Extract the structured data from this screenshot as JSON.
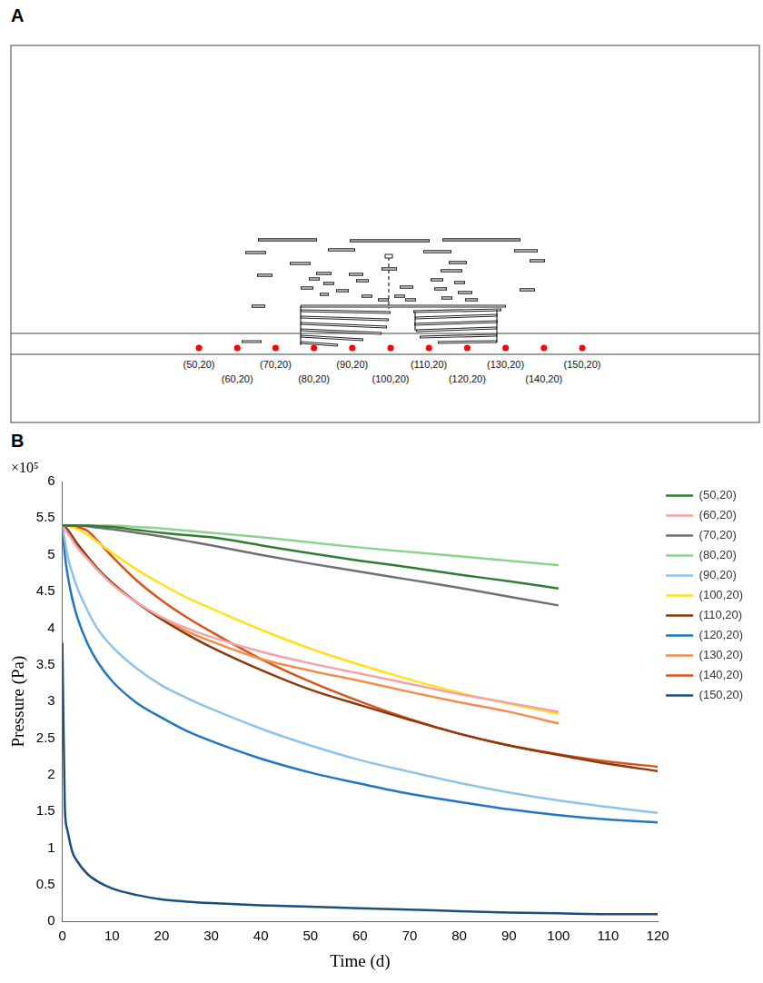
{
  "panel_a": {
    "letter": "A",
    "points": [
      {
        "label": "(50,20)",
        "x": 50,
        "y": 20
      },
      {
        "label": "(60,20)",
        "x": 60,
        "y": 20
      },
      {
        "label": "(70,20)",
        "x": 70,
        "y": 20
      },
      {
        "label": "(80,20)",
        "x": 80,
        "y": 20
      },
      {
        "label": "(90,20)",
        "x": 90,
        "y": 20
      },
      {
        "label": "(100,20)",
        "x": 100,
        "y": 20
      },
      {
        "label": "(110,20)",
        "x": 110,
        "y": 20
      },
      {
        "label": "(120,20)",
        "x": 120,
        "y": 20
      },
      {
        "label": "(130,20)",
        "x": 130,
        "y": 20
      },
      {
        "label": "(140,20)",
        "x": 140,
        "y": 20
      },
      {
        "label": "(150,20)",
        "x": 150,
        "y": 20
      }
    ]
  },
  "panel_b": {
    "letter": "B"
  },
  "chart_data": {
    "type": "line",
    "x_label": "Time (d)",
    "y_label": "Pressure (Pa)",
    "annotations": [
      "×10⁵"
    ],
    "x": [
      0,
      0.5,
      1,
      2,
      3,
      5,
      7,
      10,
      15,
      20,
      25,
      30,
      40,
      50,
      60,
      70,
      80,
      90,
      100,
      110,
      120
    ],
    "xlim": [
      0,
      120
    ],
    "xticks": [
      0,
      10,
      20,
      30,
      40,
      50,
      60,
      70,
      80,
      90,
      100,
      110,
      120
    ],
    "ylim": [
      0,
      6
    ],
    "yticks": [
      0,
      0.5,
      1,
      1.5,
      2,
      2.5,
      3,
      3.5,
      4,
      4.5,
      5,
      5.5,
      6
    ],
    "grid": false,
    "legend": "right",
    "marker": "none",
    "series": [
      {
        "name": "(50,20)",
        "color": "#2e7d32",
        "values": [
          5.4,
          5.4,
          5.4,
          5.4,
          5.4,
          5.4,
          5.39,
          5.38,
          5.34,
          5.3,
          5.27,
          5.24,
          5.13,
          5.02,
          4.92,
          4.83,
          4.73,
          4.64,
          4.54,
          null,
          null
        ]
      },
      {
        "name": "(60,20)",
        "color": "#f4a3a8",
        "values": [
          5.4,
          5.35,
          5.3,
          5.2,
          5.1,
          4.95,
          4.8,
          4.6,
          4.35,
          4.15,
          4.0,
          3.88,
          3.68,
          3.52,
          3.38,
          3.24,
          3.1,
          2.98,
          2.86,
          null,
          null
        ]
      },
      {
        "name": "(70,20)",
        "color": "#707070",
        "values": [
          5.4,
          5.4,
          5.4,
          5.4,
          5.4,
          5.39,
          5.37,
          5.35,
          5.3,
          5.25,
          5.19,
          5.13,
          5.0,
          4.88,
          4.77,
          4.66,
          4.55,
          4.43,
          4.31,
          null,
          null
        ]
      },
      {
        "name": "(80,20)",
        "color": "#8fd18f",
        "values": [
          5.4,
          5.4,
          5.4,
          5.4,
          5.4,
          5.4,
          5.4,
          5.4,
          5.38,
          5.36,
          5.33,
          5.3,
          5.24,
          5.17,
          5.1,
          5.04,
          4.98,
          4.92,
          4.86,
          null,
          null
        ]
      },
      {
        "name": "(90,20)",
        "color": "#8fc3ea",
        "values": [
          5.4,
          5.2,
          5.0,
          4.75,
          4.55,
          4.25,
          4.0,
          3.75,
          3.45,
          3.22,
          3.05,
          2.9,
          2.63,
          2.4,
          2.2,
          2.04,
          1.89,
          1.76,
          1.65,
          1.56,
          1.48
        ]
      },
      {
        "name": "(100,20)",
        "color": "#ffe21a",
        "values": [
          5.4,
          5.4,
          5.4,
          5.38,
          5.35,
          5.28,
          5.18,
          5.03,
          4.8,
          4.6,
          4.42,
          4.27,
          3.98,
          3.72,
          3.5,
          3.3,
          3.12,
          2.97,
          2.83,
          null,
          null
        ]
      },
      {
        "name": "(110,20)",
        "color": "#8b3a0e",
        "values": [
          5.4,
          5.38,
          5.35,
          5.25,
          5.15,
          4.98,
          4.82,
          4.62,
          4.35,
          4.12,
          3.92,
          3.74,
          3.43,
          3.16,
          2.95,
          2.75,
          2.56,
          2.4,
          2.27,
          2.15,
          2.05
        ]
      },
      {
        "name": "(120,20)",
        "color": "#1f77c4",
        "values": [
          5.4,
          5.0,
          4.75,
          4.4,
          4.15,
          3.8,
          3.55,
          3.28,
          2.98,
          2.78,
          2.6,
          2.46,
          2.22,
          2.03,
          1.88,
          1.74,
          1.63,
          1.53,
          1.45,
          1.39,
          1.35
        ]
      },
      {
        "name": "(130,20)",
        "color": "#f58d4a",
        "values": [
          5.4,
          5.38,
          5.33,
          5.25,
          5.15,
          4.98,
          4.82,
          4.62,
          4.35,
          4.14,
          3.96,
          3.82,
          3.58,
          3.42,
          3.28,
          3.13,
          2.99,
          2.86,
          2.7,
          null,
          null
        ]
      },
      {
        "name": "(140,20)",
        "color": "#d9541b",
        "values": [
          5.4,
          5.4,
          5.4,
          5.4,
          5.38,
          5.33,
          5.2,
          4.98,
          4.65,
          4.38,
          4.15,
          3.95,
          3.58,
          3.27,
          3.0,
          2.76,
          2.56,
          2.4,
          2.28,
          2.18,
          2.11
        ]
      },
      {
        "name": "(150,20)",
        "color": "#1b4f7c",
        "values": [
          3.8,
          1.55,
          1.25,
          0.95,
          0.82,
          0.65,
          0.55,
          0.45,
          0.36,
          0.3,
          0.27,
          0.25,
          0.22,
          0.2,
          0.18,
          0.16,
          0.14,
          0.12,
          0.11,
          0.1,
          0.1
        ]
      }
    ]
  }
}
